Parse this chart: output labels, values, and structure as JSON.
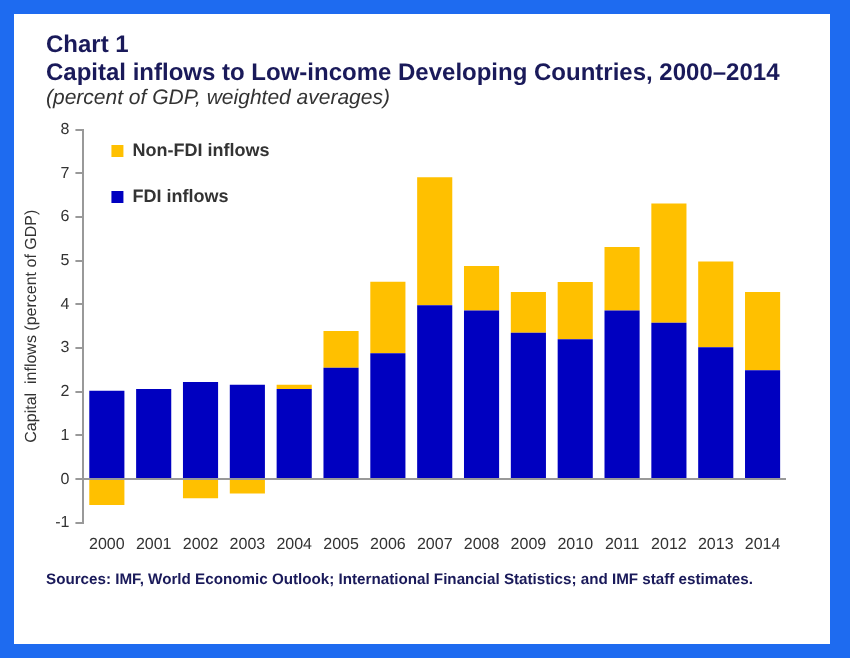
{
  "chart_data": {
    "type": "bar",
    "title": "Chart 1\nCapital inflows to Low-income Developing Countries, 2000–2014",
    "subtitle": "(percent of GDP, weighted averages)",
    "ylabel": "Capital  inflows (percent of GDP)",
    "categories": [
      "2000",
      "2001",
      "2002",
      "2003",
      "2004",
      "2005",
      "2006",
      "2007",
      "2008",
      "2009",
      "2010",
      "2011",
      "2012",
      "2013",
      "2014"
    ],
    "series": [
      {
        "name": "FDI inflows",
        "color": "#0000c0",
        "values": [
          2.02,
          2.06,
          2.22,
          2.16,
          2.06,
          2.55,
          2.88,
          3.98,
          3.86,
          3.35,
          3.2,
          3.86,
          3.58,
          3.02,
          2.49
        ]
      },
      {
        "name": "Non-FDI inflows",
        "color": "#ffc000",
        "values": [
          -0.59,
          0,
          -0.44,
          -0.33,
          0.1,
          0.84,
          1.64,
          2.93,
          1.02,
          0.93,
          1.31,
          1.45,
          2.73,
          1.96,
          1.79
        ]
      }
    ],
    "stacked": true,
    "ylim": [
      -1,
      8
    ],
    "yticks": [
      -1,
      0,
      1,
      2,
      3,
      4,
      5,
      6,
      7,
      8
    ],
    "grid": false,
    "ref_lines": [
      {
        "axis": "y",
        "value": 0,
        "color": "#999999"
      }
    ],
    "legend": "top left",
    "annotations": [
      "Sources: IMF, World Economic Outlook; International Financial Statistics; and IMF staff estimates."
    ]
  }
}
